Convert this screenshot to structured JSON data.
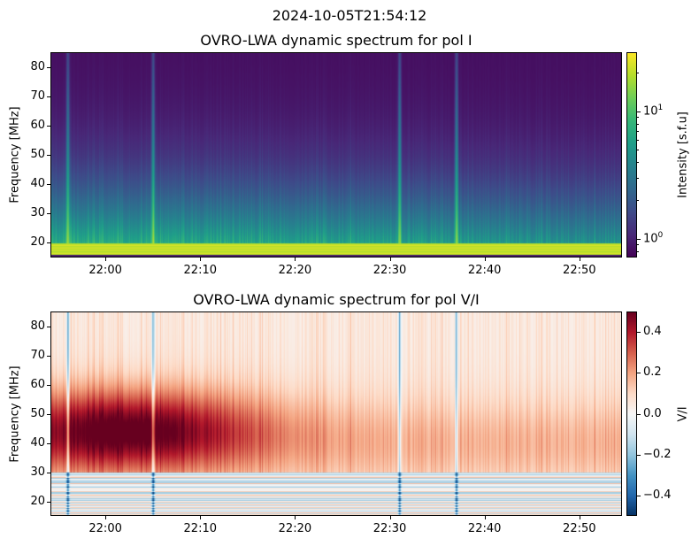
{
  "suptitle": "2024-10-05T21:54:12",
  "chart_data": [
    {
      "type": "heatmap",
      "title": "OVRO-LWA dynamic spectrum for pol I",
      "xlabel": "",
      "ylabel": "Frequency [MHz]",
      "x_range": [
        "21:54:12",
        "22:54:30"
      ],
      "xticks": [
        "22:00",
        "22:10",
        "22:20",
        "22:30",
        "22:40",
        "22:50"
      ],
      "ylim": [
        15,
        85
      ],
      "yticks": [
        20,
        30,
        40,
        50,
        60,
        70,
        80
      ],
      "colormap": "viridis",
      "color_scale": "log",
      "clim": [
        0.71,
        29
      ],
      "colorbar_label": "Intensity [s.f.u]",
      "colorbar_ticks": [
        {
          "value": 1,
          "base": "10",
          "exp": "0"
        },
        {
          "value": 10,
          "base": "10",
          "exp": "1"
        }
      ],
      "features": {
        "bright_band_mhz": [
          16,
          20
        ],
        "bursts_time": [
          "21:56",
          "22:05",
          "22:31",
          "22:37"
        ]
      }
    },
    {
      "type": "heatmap",
      "title": "OVRO-LWA dynamic spectrum for pol V/I",
      "xlabel": "",
      "ylabel": "Frequency [MHz]",
      "x_range": [
        "21:54:12",
        "22:54:30"
      ],
      "xticks": [
        "22:00",
        "22:10",
        "22:20",
        "22:30",
        "22:40",
        "22:50"
      ],
      "ylim": [
        15,
        85
      ],
      "yticks": [
        20,
        30,
        40,
        50,
        60,
        70,
        80
      ],
      "colormap": "RdBu_r",
      "color_scale": "linear",
      "clim": [
        -0.5,
        0.5
      ],
      "colorbar_label": "V/I",
      "colorbar_ticks": [
        0.4,
        0.2,
        0.0,
        -0.2,
        -0.4
      ],
      "colorbar_tick_labels": [
        "0.4",
        "0.2",
        "0.0",
        "−0.2",
        "−0.4"
      ]
    }
  ]
}
